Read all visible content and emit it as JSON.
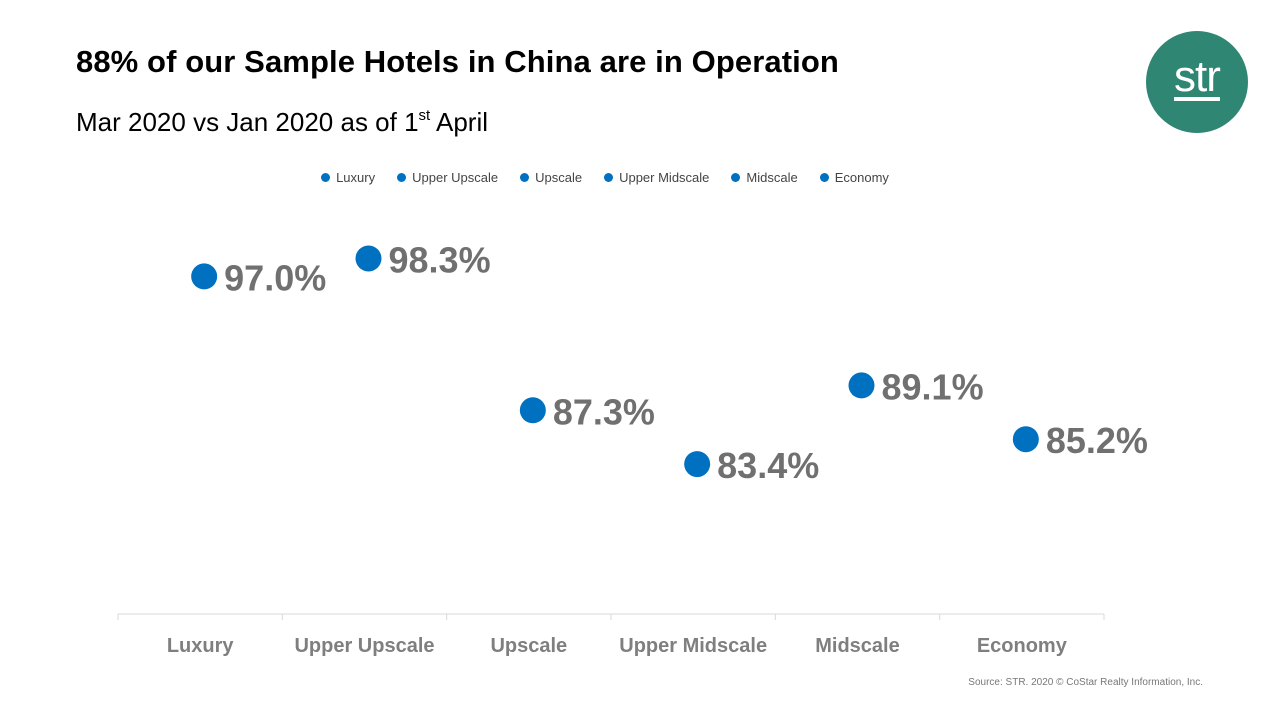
{
  "title": "88% of our Sample Hotels in China are in Operation",
  "subtitle": {
    "prefix": "Mar 2020 vs Jan 2020 as of 1",
    "superscript": "st",
    "suffix": " April"
  },
  "logo": {
    "text": "str",
    "color": "#2e8673"
  },
  "source": "Source: STR. 2020 © CoStar Realty Information, Inc.",
  "colors": {
    "marker": "#0070c0",
    "label": "#707070",
    "axis": "#d9d9d9",
    "tick_label": "#7f7f7f"
  },
  "chart_data": {
    "type": "scatter",
    "categories": [
      "Luxury",
      "Upper Upscale",
      "Upscale",
      "Upper Midscale",
      "Midscale",
      "Economy"
    ],
    "series": [
      {
        "name": "Luxury",
        "values": [
          97.0
        ]
      },
      {
        "name": "Upper Upscale",
        "values": [
          98.3
        ]
      },
      {
        "name": "Upscale",
        "values": [
          87.3
        ]
      },
      {
        "name": "Upper Midscale",
        "values": [
          83.4
        ]
      },
      {
        "name": "Midscale",
        "values": [
          89.1
        ]
      },
      {
        "name": "Economy",
        "values": [
          85.2
        ]
      }
    ],
    "data_labels": [
      "97.0%",
      "98.3%",
      "87.3%",
      "83.4%",
      "89.1%",
      "85.2%"
    ],
    "ylim": [
      75,
      100
    ],
    "legend": "top-center",
    "grid": false
  }
}
